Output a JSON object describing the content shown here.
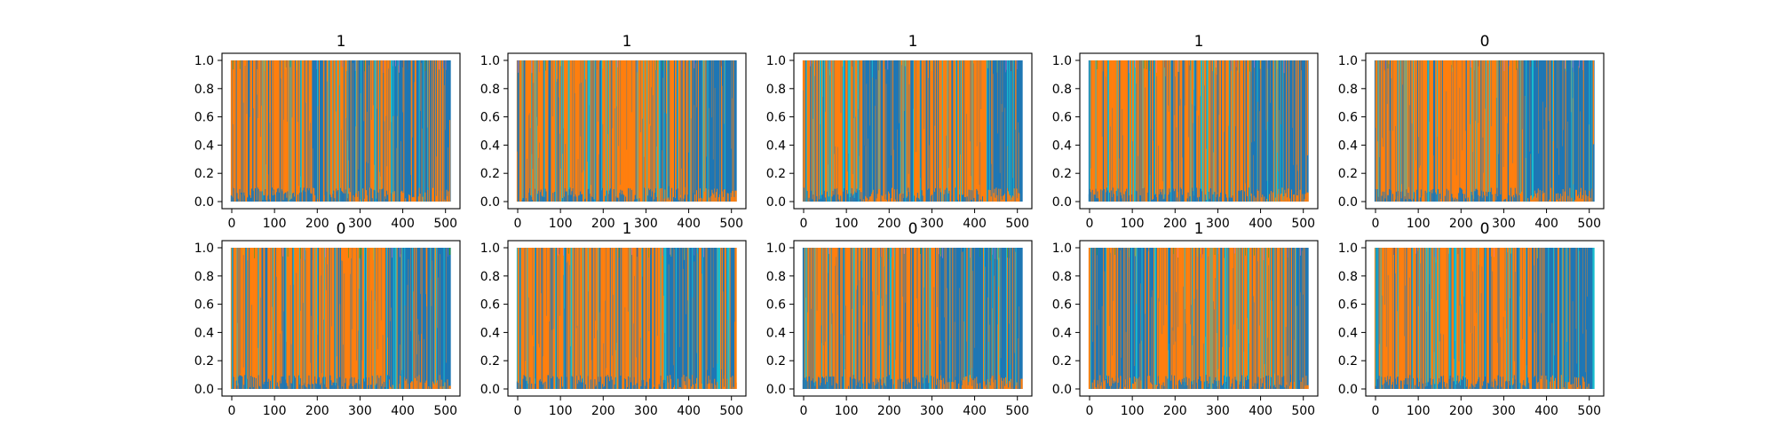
{
  "figure": {
    "background": "#ffffff",
    "rows": 2,
    "cols": 5
  },
  "palette": [
    "#1f77b4",
    "#ff7f0e",
    "#17becf",
    "#2ca02c",
    "#9467bd",
    "#e377c2",
    "#bcbd22",
    "#8c564b"
  ],
  "chart_data": [
    {
      "type": "area",
      "title": "1",
      "x_range": [
        0,
        511
      ],
      "x_ticks": [
        0,
        100,
        200,
        300,
        400,
        500
      ],
      "ylim": [
        0,
        1
      ],
      "y_ticks": [
        "0.0",
        "0.2",
        "0.4",
        "0.6",
        "0.8",
        "1.0"
      ],
      "grid": false,
      "series": [
        {
          "color": "#ff7f0e",
          "dominant_intervals": [
            [
              0,
              190
            ],
            [
              215,
              275
            ],
            [
              325,
              375
            ]
          ]
        },
        {
          "color": "#1f77b4",
          "dominant_intervals": [
            [
              190,
              215
            ],
            [
              275,
              325
            ],
            [
              375,
              511
            ]
          ]
        }
      ]
    },
    {
      "type": "area",
      "title": "1",
      "x_range": [
        0,
        511
      ],
      "x_ticks": [
        0,
        100,
        200,
        300,
        400,
        500
      ],
      "ylim": [
        0,
        1
      ],
      "y_ticks": [
        "0.0",
        "0.2",
        "0.4",
        "0.6",
        "0.8",
        "1.0"
      ],
      "grid": false,
      "series": [
        {
          "color": "#ff7f0e",
          "dominant_intervals": [
            [
              0,
              330
            ],
            [
              360,
              410
            ]
          ]
        },
        {
          "color": "#1f77b4",
          "dominant_intervals": [
            [
              330,
              360
            ],
            [
              410,
              511
            ]
          ]
        }
      ]
    },
    {
      "type": "area",
      "title": "1",
      "x_range": [
        0,
        511
      ],
      "x_ticks": [
        0,
        100,
        200,
        300,
        400,
        500
      ],
      "ylim": [
        0,
        1
      ],
      "y_ticks": [
        "0.0",
        "0.2",
        "0.4",
        "0.6",
        "0.8",
        "1.0"
      ],
      "grid": false,
      "series": [
        {
          "color": "#ff7f0e",
          "dominant_intervals": [
            [
              0,
              140
            ],
            [
              230,
              430
            ]
          ]
        },
        {
          "color": "#1f77b4",
          "dominant_intervals": [
            [
              140,
              230
            ],
            [
              430,
              511
            ]
          ]
        }
      ]
    },
    {
      "type": "area",
      "title": "1",
      "x_range": [
        0,
        511
      ],
      "x_ticks": [
        0,
        100,
        200,
        300,
        400,
        500
      ],
      "ylim": [
        0,
        1
      ],
      "y_ticks": [
        "0.0",
        "0.2",
        "0.4",
        "0.6",
        "0.8",
        "1.0"
      ],
      "grid": false,
      "series": [
        {
          "color": "#ff7f0e",
          "dominant_intervals": [
            [
              0,
              380
            ]
          ]
        },
        {
          "color": "#1f77b4",
          "dominant_intervals": [
            [
              380,
              511
            ]
          ]
        }
      ]
    },
    {
      "type": "area",
      "title": "0",
      "x_range": [
        0,
        511
      ],
      "x_ticks": [
        0,
        100,
        200,
        300,
        400,
        500
      ],
      "ylim": [
        0,
        1
      ],
      "y_ticks": [
        "0.0",
        "0.2",
        "0.4",
        "0.6",
        "0.8",
        "1.0"
      ],
      "grid": false,
      "series": [
        {
          "color": "#ff7f0e",
          "dominant_intervals": [
            [
              0,
              340
            ]
          ]
        },
        {
          "color": "#1f77b4",
          "dominant_intervals": [
            [
              340,
              511
            ]
          ]
        }
      ]
    },
    {
      "type": "area",
      "title": "0",
      "x_range": [
        0,
        511
      ],
      "x_ticks": [
        0,
        100,
        200,
        300,
        400,
        500
      ],
      "ylim": [
        0,
        1
      ],
      "y_ticks": [
        "0.0",
        "0.2",
        "0.4",
        "0.6",
        "0.8",
        "1.0"
      ],
      "grid": false,
      "series": [
        {
          "color": "#ff7f0e",
          "dominant_intervals": [
            [
              0,
              370
            ]
          ]
        },
        {
          "color": "#1f77b4",
          "dominant_intervals": [
            [
              370,
              511
            ]
          ]
        }
      ]
    },
    {
      "type": "area",
      "title": "1",
      "x_range": [
        0,
        511
      ],
      "x_ticks": [
        0,
        100,
        200,
        300,
        400,
        500
      ],
      "ylim": [
        0,
        1
      ],
      "y_ticks": [
        "0.0",
        "0.2",
        "0.4",
        "0.6",
        "0.8",
        "1.0"
      ],
      "grid": false,
      "series": [
        {
          "color": "#ff7f0e",
          "dominant_intervals": [
            [
              0,
              350
            ]
          ]
        },
        {
          "color": "#1f77b4",
          "dominant_intervals": [
            [
              350,
              511
            ]
          ]
        }
      ]
    },
    {
      "type": "area",
      "title": "0",
      "x_range": [
        0,
        511
      ],
      "x_ticks": [
        0,
        100,
        200,
        300,
        400,
        500
      ],
      "ylim": [
        0,
        1
      ],
      "y_ticks": [
        "0.0",
        "0.2",
        "0.4",
        "0.6",
        "0.8",
        "1.0"
      ],
      "grid": false,
      "series": [
        {
          "color": "#ff7f0e",
          "dominant_intervals": [
            [
              0,
              320
            ]
          ]
        },
        {
          "color": "#1f77b4",
          "dominant_intervals": [
            [
              320,
              511
            ]
          ]
        }
      ]
    },
    {
      "type": "area",
      "title": "1",
      "x_range": [
        0,
        511
      ],
      "x_ticks": [
        0,
        100,
        200,
        300,
        400,
        500
      ],
      "ylim": [
        0,
        1
      ],
      "y_ticks": [
        "0.0",
        "0.2",
        "0.4",
        "0.6",
        "0.8",
        "1.0"
      ],
      "grid": false,
      "series": [
        {
          "color": "#1f77b4",
          "dominant_intervals": [
            [
              0,
              40
            ],
            [
              70,
              160
            ],
            [
              470,
              511
            ]
          ]
        },
        {
          "color": "#ff7f0e",
          "dominant_intervals": [
            [
              40,
              70
            ],
            [
              160,
              470
            ]
          ]
        }
      ]
    },
    {
      "type": "area",
      "title": "0",
      "x_range": [
        0,
        511
      ],
      "x_ticks": [
        0,
        100,
        200,
        300,
        400,
        500
      ],
      "ylim": [
        0,
        1
      ],
      "y_ticks": [
        "0.0",
        "0.2",
        "0.4",
        "0.6",
        "0.8",
        "1.0"
      ],
      "grid": false,
      "series": [
        {
          "color": "#ff7f0e",
          "dominant_intervals": [
            [
              0,
              380
            ]
          ]
        },
        {
          "color": "#1f77b4",
          "dominant_intervals": [
            [
              380,
              511
            ]
          ]
        }
      ]
    }
  ]
}
